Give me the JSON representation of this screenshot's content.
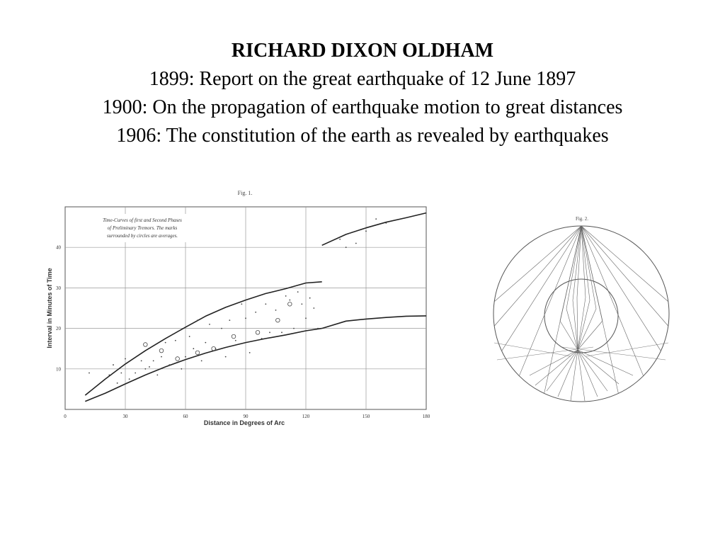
{
  "slide": {
    "title": "RICHARD  DIXON  OLDHAM",
    "lines": [
      "1899: Report on the great earthquake of 12 June 1897",
      "1900: On the propagation of earthquake motion to great distances",
      "1906: The constitution of the earth as revealed by earthquakes"
    ]
  },
  "chart_data": {
    "type": "line",
    "title": "Fig. 1.",
    "annotation": [
      "Time-Curves of first and Second Phases",
      "of Preliminary Tremors.   The marks",
      "surrounded by circles are averages."
    ],
    "xlabel": "Distance  in  Degrees  of  Arc",
    "ylabel": "Interval  in  Minutes  of  Time",
    "xlim": [
      0,
      180
    ],
    "ylim": [
      0,
      50
    ],
    "xticks": [
      0,
      30,
      60,
      90,
      120,
      150,
      180
    ],
    "yticks": [
      10,
      20,
      30,
      40
    ],
    "grid": true,
    "series": [
      {
        "x": [
          10,
          20,
          30,
          40,
          50,
          60,
          70,
          80,
          90,
          100,
          110,
          120,
          128
        ],
        "y": [
          2,
          4,
          6.3,
          8.5,
          10.5,
          12.3,
          13.9,
          15.3,
          16.5,
          17.5,
          18.4,
          19.4,
          20
        ]
      },
      {
        "x": [
          128,
          140,
          150,
          160,
          170,
          180
        ],
        "y": [
          20,
          21.8,
          22.3,
          22.7,
          23,
          23.1
        ]
      },
      {
        "x": [
          10,
          20,
          30,
          40,
          50,
          60,
          70,
          80,
          90,
          100,
          110,
          120,
          128
        ],
        "y": [
          3.5,
          7.5,
          11.2,
          14.5,
          17.5,
          20.3,
          23,
          25.2,
          27,
          28.6,
          29.8,
          31.2,
          31.5
        ]
      },
      {
        "x": [
          128,
          140,
          150,
          160,
          170,
          180
        ],
        "y": [
          40.5,
          43.2,
          44.8,
          46.2,
          47.3,
          48.5
        ]
      }
    ],
    "points": {
      "x": [
        12,
        22,
        24,
        26,
        28,
        30,
        32,
        35,
        38,
        40,
        42,
        44,
        46,
        48,
        50,
        52,
        55,
        58,
        60,
        62,
        64,
        66,
        68,
        70,
        72,
        75,
        78,
        80,
        82,
        85,
        88,
        90,
        92,
        95,
        98,
        100,
        102,
        105,
        108,
        110,
        112,
        114,
        116,
        118,
        120,
        122,
        124,
        126,
        137,
        140,
        142,
        145,
        150,
        155,
        160,
        40,
        48,
        56,
        66,
        74,
        84,
        96,
        106,
        112
      ],
      "y": [
        9,
        8.5,
        11,
        6.5,
        9,
        12.5,
        7.5,
        9,
        12,
        10,
        10.5,
        12,
        8.5,
        13,
        16.5,
        11,
        17,
        10,
        13,
        18,
        15,
        22,
        12,
        16.5,
        21,
        15,
        20,
        13,
        22,
        17,
        26,
        22.5,
        14,
        24,
        17.5,
        26,
        19,
        24.5,
        19,
        28,
        27,
        20,
        29,
        26,
        22.5,
        27.5,
        25,
        20,
        42,
        40,
        43.5,
        41,
        44,
        47,
        46,
        16,
        14.5,
        12.5,
        14,
        15,
        18,
        19,
        22,
        26
      ],
      "circled": [
        0,
        0,
        0,
        0,
        0,
        0,
        0,
        0,
        0,
        0,
        0,
        0,
        0,
        0,
        0,
        0,
        0,
        0,
        0,
        0,
        0,
        0,
        0,
        0,
        0,
        0,
        0,
        0,
        0,
        0,
        0,
        0,
        0,
        0,
        0,
        0,
        0,
        0,
        0,
        0,
        0,
        0,
        0,
        0,
        0,
        0,
        0,
        0,
        0,
        0,
        0,
        0,
        0,
        0,
        0,
        1,
        1,
        1,
        1,
        1,
        1,
        1,
        1,
        1
      ]
    }
  },
  "fig2": {
    "label": "Fig. 2."
  }
}
